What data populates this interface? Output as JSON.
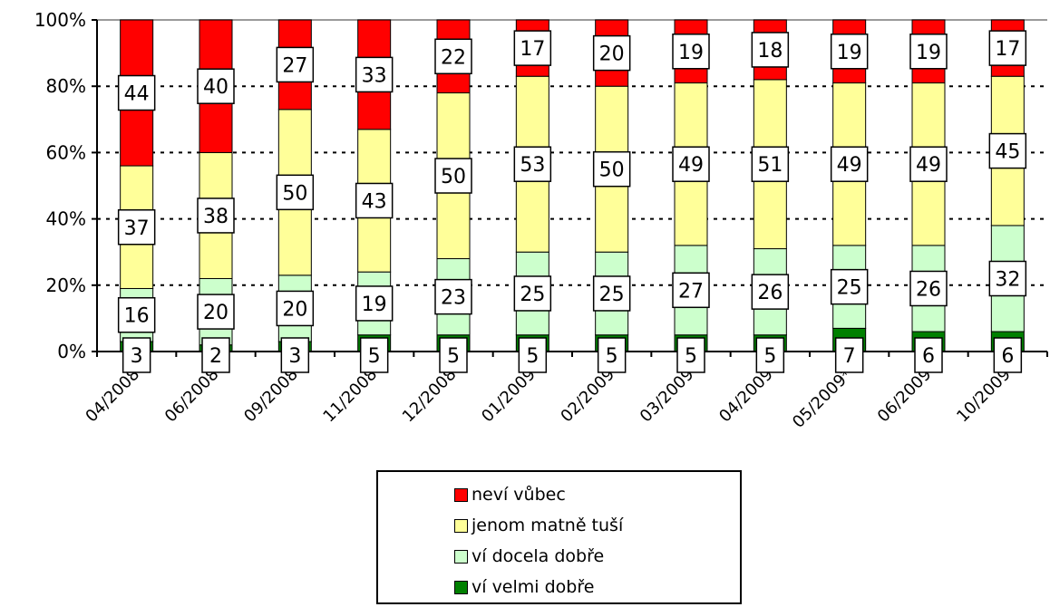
{
  "chart_data": {
    "type": "stacked-bar-percent",
    "categories": [
      "04/2008",
      "06/2008",
      "09/2008",
      "11/2008",
      "12/2008",
      "01/2009",
      "02/2009",
      "03/2009",
      "04/2009",
      "05/2009*",
      "06/2009",
      "10/2009"
    ],
    "series": [
      {
        "name": "ví velmi dobře",
        "color": "#008000",
        "values": [
          3,
          2,
          3,
          5,
          5,
          5,
          5,
          5,
          5,
          7,
          6,
          6
        ]
      },
      {
        "name": "ví docela dobře",
        "color": "#ccffcc",
        "values": [
          16,
          20,
          20,
          19,
          23,
          25,
          25,
          27,
          26,
          25,
          26,
          32
        ]
      },
      {
        "name": "jenom matně tuší",
        "color": "#ffff99",
        "values": [
          37,
          38,
          50,
          43,
          50,
          53,
          50,
          49,
          51,
          49,
          49,
          45
        ]
      },
      {
        "name": "neví vůbec",
        "color": "#ff0000",
        "values": [
          44,
          40,
          27,
          33,
          22,
          17,
          20,
          19,
          18,
          19,
          19,
          17
        ]
      }
    ],
    "y_ticks": [
      "0%",
      "20%",
      "40%",
      "60%",
      "80%",
      "100%"
    ],
    "ylim": [
      0,
      100
    ],
    "grid": "dotted horizontal",
    "legend_position": "bottom"
  },
  "legend": {
    "items": [
      {
        "label": "neví vůbec",
        "color": "#ff0000"
      },
      {
        "label": "jenom matně tuší",
        "color": "#ffff99"
      },
      {
        "label": "ví docela dobře",
        "color": "#ccffcc"
      },
      {
        "label": "ví velmi dobře",
        "color": "#008000"
      }
    ]
  }
}
